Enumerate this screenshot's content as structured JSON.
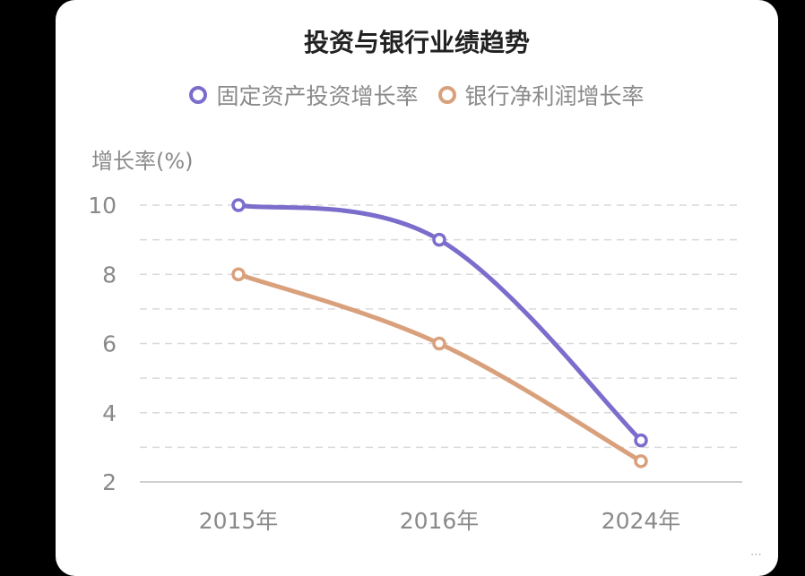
{
  "chart_data": {
    "type": "line",
    "title": "投资与银行业绩趋势",
    "ylabel": "增长率(%)",
    "xlabel": "",
    "categories": [
      "2015年",
      "2016年",
      "2024年"
    ],
    "yticks": [
      2,
      4,
      6,
      8,
      10
    ],
    "ylim": [
      2,
      10
    ],
    "grid": true,
    "legend_position": "top",
    "series": [
      {
        "name": "固定资产投资增长率",
        "values": [
          10,
          9,
          3.2
        ],
        "color": "#7b6dcc"
      },
      {
        "name": "银行净利润增长率",
        "values": [
          8,
          6,
          2.6
        ],
        "color": "#d9a07c"
      }
    ]
  }
}
